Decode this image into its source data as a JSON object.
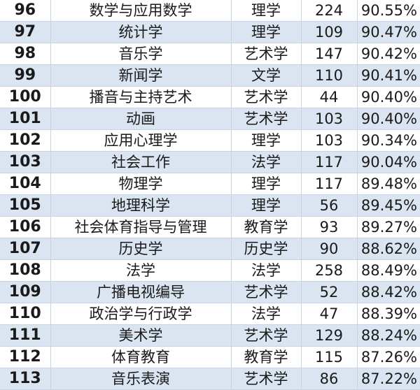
{
  "rows": [
    {
      "rank": "96",
      "major": "数学与应用数学",
      "category": "理学",
      "count": "224",
      "rate": "90.55%"
    },
    {
      "rank": "97",
      "major": "统计学",
      "category": "理学",
      "count": "109",
      "rate": "90.47%"
    },
    {
      "rank": "98",
      "major": "音乐学",
      "category": "艺术学",
      "count": "147",
      "rate": "90.42%"
    },
    {
      "rank": "99",
      "major": "新闻学",
      "category": "文学",
      "count": "110",
      "rate": "90.41%"
    },
    {
      "rank": "100",
      "major": "播音与主持艺术",
      "category": "艺术学",
      "count": "44",
      "rate": "90.40%"
    },
    {
      "rank": "101",
      "major": "动画",
      "category": "艺术学",
      "count": "103",
      "rate": "90.40%"
    },
    {
      "rank": "102",
      "major": "应用心理学",
      "category": "理学",
      "count": "103",
      "rate": "90.34%"
    },
    {
      "rank": "103",
      "major": "社会工作",
      "category": "法学",
      "count": "117",
      "rate": "90.04%"
    },
    {
      "rank": "104",
      "major": "物理学",
      "category": "理学",
      "count": "117",
      "rate": "89.48%"
    },
    {
      "rank": "105",
      "major": "地理科学",
      "category": "理学",
      "count": "56",
      "rate": "89.45%"
    },
    {
      "rank": "106",
      "major": "社会体育指导与管理",
      "category": "教育学",
      "count": "93",
      "rate": "89.27%"
    },
    {
      "rank": "107",
      "major": "历史学",
      "category": "历史学",
      "count": "90",
      "rate": "88.62%"
    },
    {
      "rank": "108",
      "major": "法学",
      "category": "法学",
      "count": "258",
      "rate": "88.49%"
    },
    {
      "rank": "109",
      "major": "广播电视编导",
      "category": "艺术学",
      "count": "52",
      "rate": "88.42%"
    },
    {
      "rank": "110",
      "major": "政治学与行政学",
      "category": "法学",
      "count": "47",
      "rate": "88.39%"
    },
    {
      "rank": "111",
      "major": "美术学",
      "category": "艺术学",
      "count": "129",
      "rate": "88.24%"
    },
    {
      "rank": "112",
      "major": "体育教育",
      "category": "教育学",
      "count": "115",
      "rate": "87.26%"
    },
    {
      "rank": "113",
      "major": "音乐表演",
      "category": "艺术学",
      "count": "86",
      "rate": "87.22%"
    }
  ],
  "colors": {
    "alt_row": "#dbe5f1",
    "row": "#ffffff"
  }
}
